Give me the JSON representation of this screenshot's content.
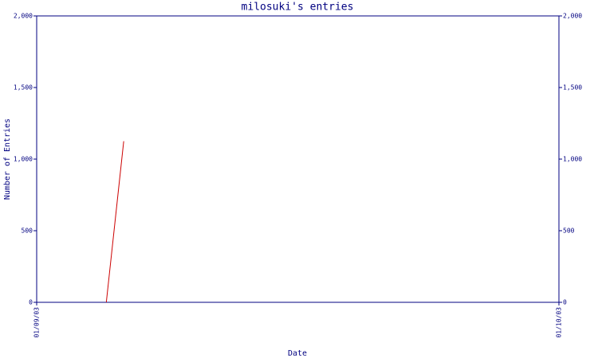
{
  "chart_data": {
    "type": "line",
    "title": "milosuki's entries",
    "x_label": "Date",
    "y_label": "Number of Entries",
    "x": [
      "2003-09-05",
      "2003-09-06"
    ],
    "values": [
      0,
      1125
    ],
    "color": "#cc0000",
    "xlim": [
      "2003-09-01",
      "2003-10-01"
    ],
    "xticks": [
      {
        "value": "2003-09-01",
        "label": "01/09/03"
      },
      {
        "value": "2003-10-01",
        "label": "01/10/03"
      }
    ],
    "ylim": [
      0,
      2000
    ],
    "yticks": [
      0,
      500,
      {
        "value": 1000,
        "label": "1,000"
      },
      {
        "value": 1500,
        "label": "1,500"
      },
      {
        "value": 2000,
        "label": "2,000"
      }
    ],
    "right_axis": true
  }
}
